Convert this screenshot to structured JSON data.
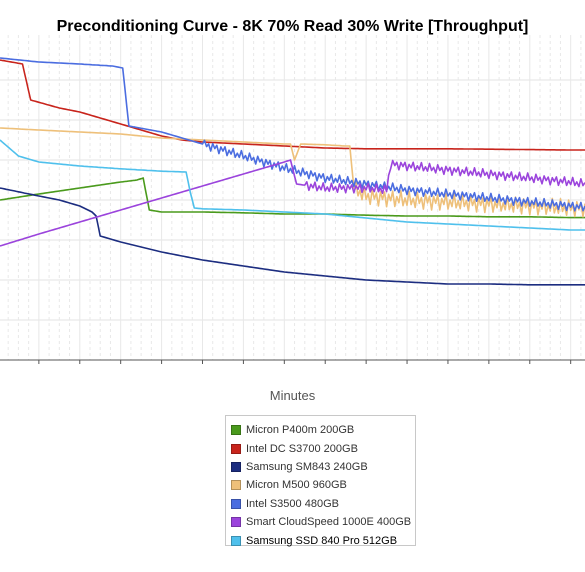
{
  "chart_data": {
    "type": "line",
    "title": "Preconditioning Curve - 8K 70% Read 30% Write [Throughput]",
    "xlabel": "Minutes",
    "ylabel": "",
    "xlim": [
      21,
      307
    ],
    "ylim": [
      0,
      8
    ],
    "x_ticks": [
      40,
      60,
      80,
      100,
      120,
      140,
      160,
      180,
      200,
      220,
      240,
      260,
      280,
      300
    ],
    "y_gridlines": [
      1,
      2,
      3,
      4,
      5,
      6,
      7
    ],
    "grid": true,
    "legend_position": "bottom",
    "series": [
      {
        "name": "Micron P400m 200GB",
        "color": "#4a9a1c",
        "points": [
          [
            21,
            4.0
          ],
          [
            40,
            4.15
          ],
          [
            60,
            4.3
          ],
          [
            80,
            4.45
          ],
          [
            88,
            4.5
          ],
          [
            91,
            4.55
          ],
          [
            94,
            3.75
          ],
          [
            100,
            3.7
          ],
          [
            120,
            3.7
          ],
          [
            140,
            3.68
          ],
          [
            160,
            3.65
          ],
          [
            180,
            3.65
          ],
          [
            200,
            3.62
          ],
          [
            220,
            3.6
          ],
          [
            240,
            3.6
          ],
          [
            260,
            3.58
          ],
          [
            280,
            3.58
          ],
          [
            300,
            3.56
          ],
          [
            307,
            3.56
          ]
        ]
      },
      {
        "name": "Intel DC S3700 200GB",
        "color": "#c8241c",
        "points": [
          [
            21,
            7.5
          ],
          [
            32,
            7.4
          ],
          [
            36,
            6.5
          ],
          [
            50,
            6.3
          ],
          [
            60,
            6.2
          ],
          [
            70,
            6.05
          ],
          [
            80,
            5.9
          ],
          [
            90,
            5.75
          ],
          [
            100,
            5.6
          ],
          [
            110,
            5.5
          ],
          [
            120,
            5.45
          ],
          [
            140,
            5.4
          ],
          [
            160,
            5.35
          ],
          [
            180,
            5.3
          ],
          [
            200,
            5.28
          ],
          [
            220,
            5.28
          ],
          [
            240,
            5.28
          ],
          [
            260,
            5.27
          ],
          [
            280,
            5.26
          ],
          [
            300,
            5.25
          ],
          [
            307,
            5.25
          ]
        ]
      },
      {
        "name": "Samsung SM843 240GB",
        "color": "#1c2d80",
        "points": [
          [
            21,
            4.3
          ],
          [
            40,
            4.1
          ],
          [
            50,
            4.0
          ],
          [
            60,
            3.85
          ],
          [
            66,
            3.7
          ],
          [
            68,
            3.6
          ],
          [
            70,
            3.1
          ],
          [
            80,
            2.95
          ],
          [
            100,
            2.7
          ],
          [
            120,
            2.5
          ],
          [
            140,
            2.35
          ],
          [
            160,
            2.2
          ],
          [
            180,
            2.1
          ],
          [
            200,
            2.0
          ],
          [
            220,
            1.95
          ],
          [
            240,
            1.9
          ],
          [
            260,
            1.9
          ],
          [
            280,
            1.88
          ],
          [
            300,
            1.88
          ],
          [
            307,
            1.88
          ]
        ]
      },
      {
        "name": "Micron M500 960GB",
        "color": "#eec07a",
        "points": [
          [
            21,
            5.8
          ],
          [
            40,
            5.75
          ],
          [
            60,
            5.7
          ],
          [
            80,
            5.65
          ],
          [
            100,
            5.55
          ],
          [
            120,
            5.5
          ],
          [
            140,
            5.45
          ],
          [
            160,
            5.4
          ],
          [
            163,
            5.4
          ],
          [
            165,
            5.0
          ],
          [
            168,
            5.4
          ],
          [
            180,
            5.38
          ],
          [
            190,
            5.35
          ],
          [
            192,
            5.35
          ],
          [
            194,
            4.3
          ],
          [
            200,
            4.1
          ],
          [
            220,
            4.0
          ],
          [
            240,
            3.95
          ],
          [
            260,
            3.9
          ],
          [
            280,
            3.85
          ],
          [
            300,
            3.8
          ],
          [
            307,
            3.8
          ]
        ],
        "noise": 0.22,
        "noise_from": 194
      },
      {
        "name": "Intel S3500 480GB",
        "color": "#4b6de0",
        "points": [
          [
            21,
            7.55
          ],
          [
            40,
            7.45
          ],
          [
            60,
            7.4
          ],
          [
            76,
            7.35
          ],
          [
            81,
            7.3
          ],
          [
            84,
            5.85
          ],
          [
            100,
            5.7
          ],
          [
            120,
            5.4
          ],
          [
            140,
            5.1
          ],
          [
            160,
            4.8
          ],
          [
            180,
            4.55
          ],
          [
            200,
            4.4
          ],
          [
            220,
            4.25
          ],
          [
            240,
            4.15
          ],
          [
            260,
            4.05
          ],
          [
            280,
            3.95
          ],
          [
            300,
            3.85
          ],
          [
            307,
            3.82
          ]
        ],
        "noise": 0.12,
        "noise_from": 120
      },
      {
        "name": "Smart CloudSpeed 1000E 400GB",
        "color": "#9b44dc",
        "points": [
          [
            21,
            2.85
          ],
          [
            40,
            3.15
          ],
          [
            60,
            3.45
          ],
          [
            80,
            3.75
          ],
          [
            100,
            4.05
          ],
          [
            120,
            4.35
          ],
          [
            140,
            4.65
          ],
          [
            160,
            4.95
          ],
          [
            163,
            5.0
          ],
          [
            166,
            4.4
          ],
          [
            180,
            4.3
          ],
          [
            200,
            4.3
          ],
          [
            210,
            4.25
          ],
          [
            212,
            4.9
          ],
          [
            220,
            4.85
          ],
          [
            240,
            4.75
          ],
          [
            260,
            4.65
          ],
          [
            280,
            4.55
          ],
          [
            300,
            4.45
          ],
          [
            307,
            4.4
          ]
        ],
        "noise": 0.12,
        "noise_from": 170
      },
      {
        "name": "Samsung SSD 840 Pro 512GB",
        "color": "#4fc0ec",
        "points": [
          [
            21,
            5.5
          ],
          [
            30,
            5.1
          ],
          [
            40,
            4.95
          ],
          [
            60,
            4.85
          ],
          [
            80,
            4.78
          ],
          [
            100,
            4.72
          ],
          [
            112,
            4.7
          ],
          [
            114,
            4.2
          ],
          [
            116,
            3.8
          ],
          [
            120,
            3.78
          ],
          [
            140,
            3.75
          ],
          [
            160,
            3.7
          ],
          [
            180,
            3.65
          ],
          [
            200,
            3.55
          ],
          [
            220,
            3.45
          ],
          [
            240,
            3.4
          ],
          [
            260,
            3.35
          ],
          [
            280,
            3.3
          ],
          [
            300,
            3.25
          ],
          [
            307,
            3.25
          ]
        ]
      }
    ]
  }
}
